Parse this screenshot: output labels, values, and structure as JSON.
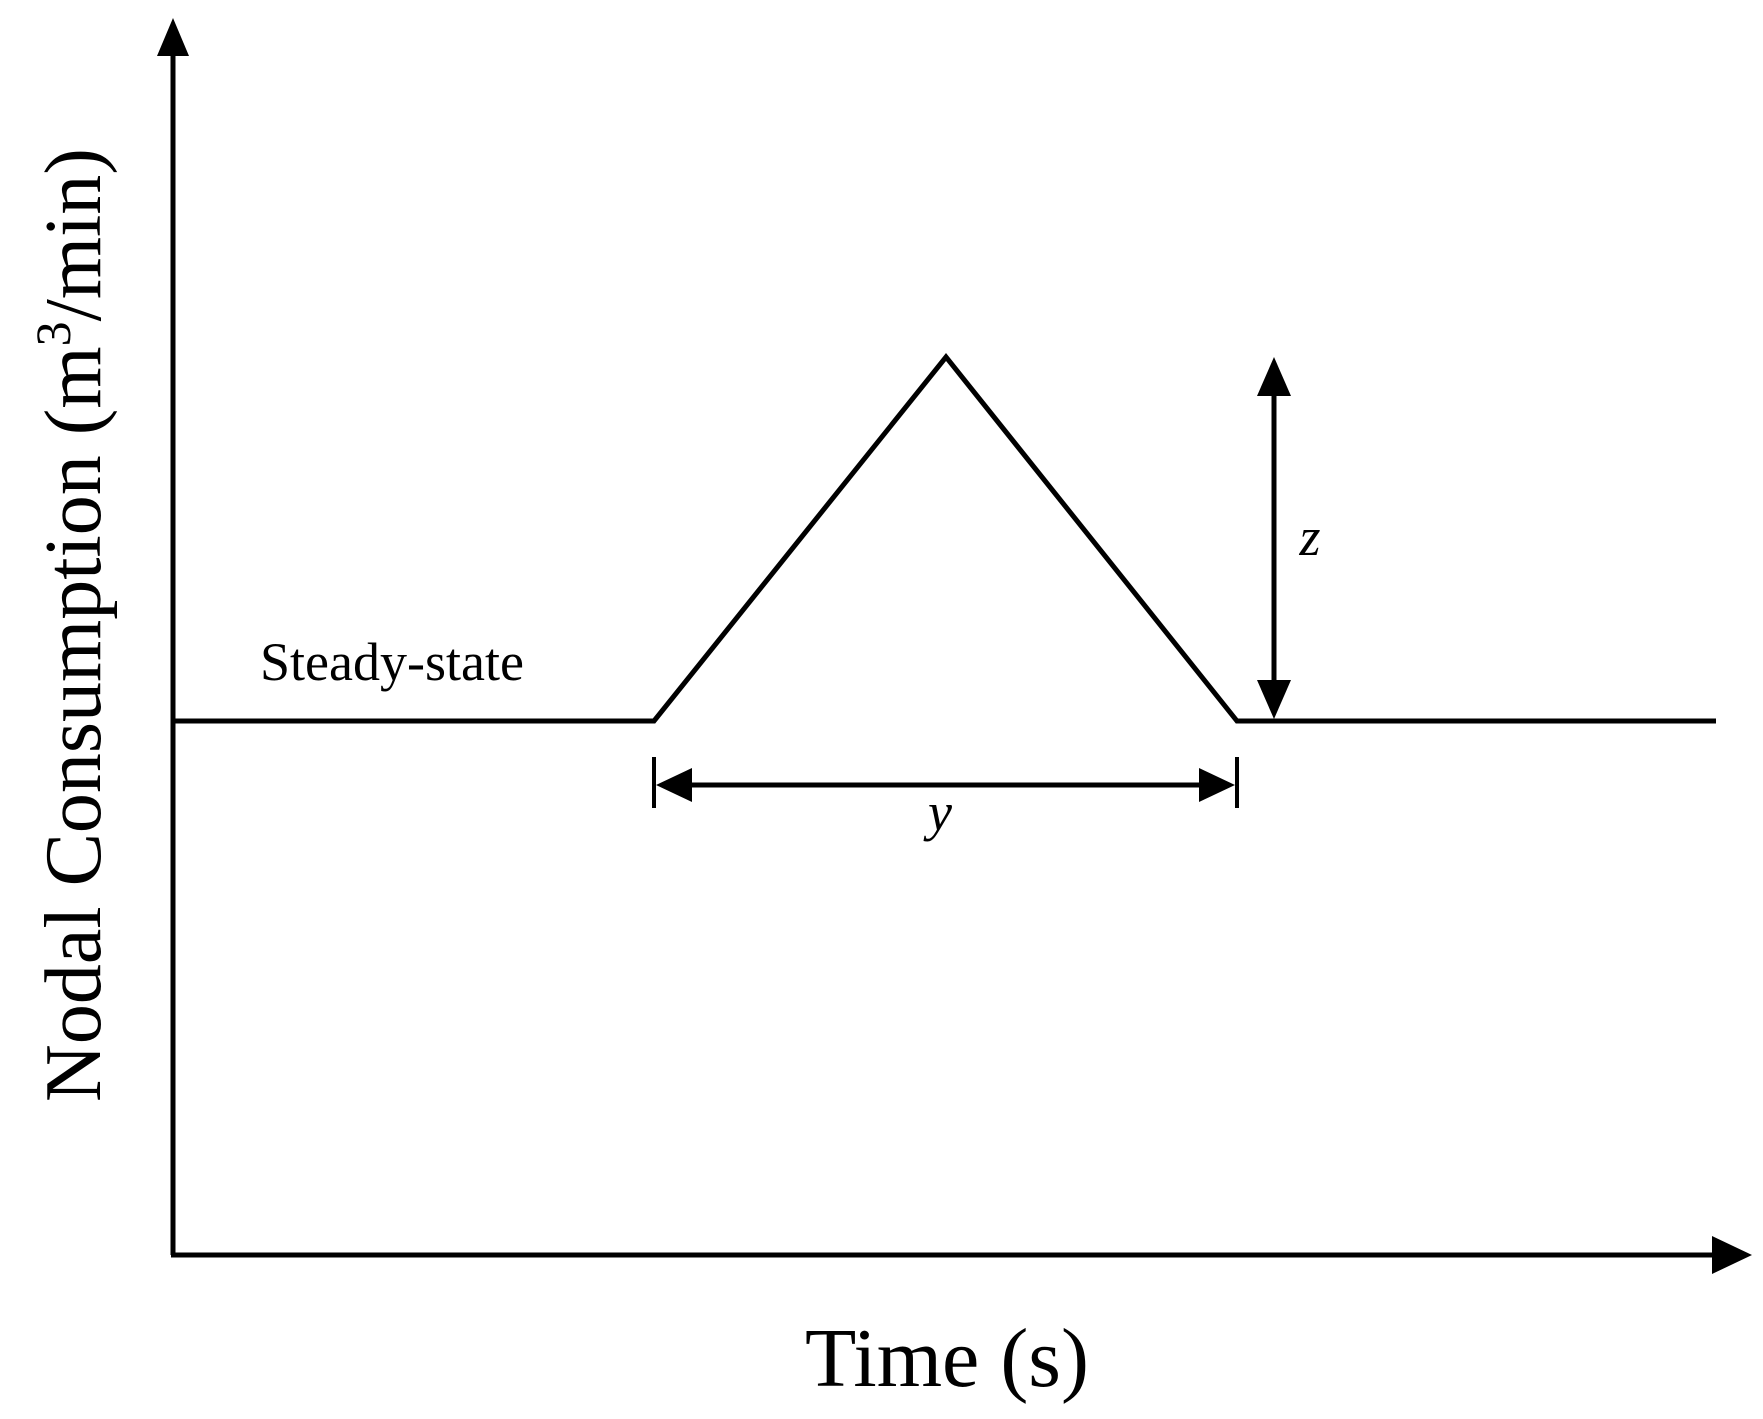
{
  "diagram": {
    "x_axis_label": "Time (s)",
    "y_axis_label": {
      "prefix": "Nodal Consumption (m",
      "superscript": "3",
      "suffix": "/min)"
    },
    "baseline_label": "Steady-state",
    "duration_label": "y",
    "amplitude_label": "z"
  },
  "colors": {
    "stroke": "#000000",
    "background": "#ffffff"
  }
}
